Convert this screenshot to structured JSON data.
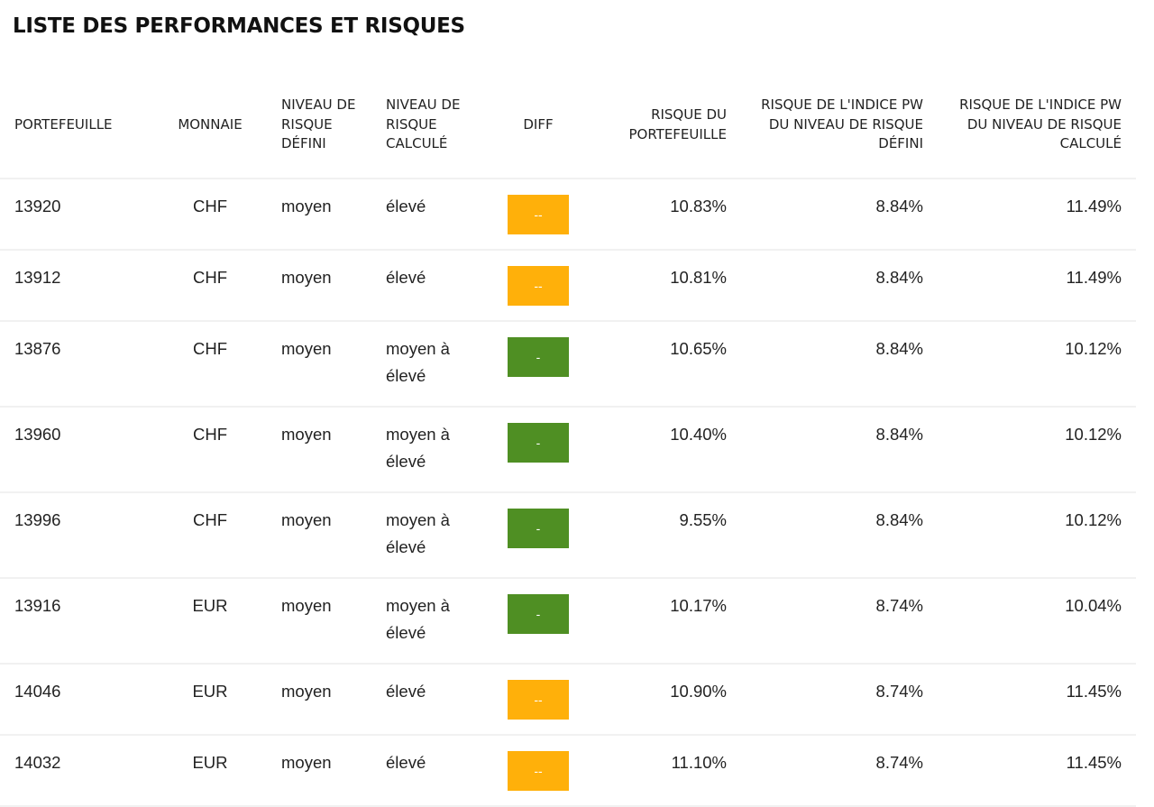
{
  "title": "LISTE DES PERFORMANCES ET RISQUES",
  "colors": {
    "orange": "#FFB00A",
    "green": "#4F8F23"
  },
  "headers": [
    "PORTEFEUILLE",
    "MONNAIE",
    "NIVEAU DE RISQUE DÉFINI",
    "NIVEAU DE RISQUE CALCULÉ",
    "DIFF",
    "RISQUE DU PORTEFEUILLE",
    "RISQUE DE L'INDICE PW DU NIVEAU DE RISQUE DÉFINI",
    "RISQUE DE L'INDICE PW DU NIVEAU DE RISQUE CALCULÉ"
  ],
  "rows": [
    {
      "portefeuille": "13920",
      "monnaie": "CHF",
      "defini": "moyen",
      "calcule": "élevé",
      "diff": "--",
      "diff_color": "orange",
      "risque": "10.83%",
      "indice_defini": "8.84%",
      "indice_calcule": "11.49%"
    },
    {
      "portefeuille": "13912",
      "monnaie": "CHF",
      "defini": "moyen",
      "calcule": "élevé",
      "diff": "--",
      "diff_color": "orange",
      "risque": "10.81%",
      "indice_defini": "8.84%",
      "indice_calcule": "11.49%"
    },
    {
      "portefeuille": "13876",
      "monnaie": "CHF",
      "defini": "moyen",
      "calcule": "moyen à élevé",
      "diff": "-",
      "diff_color": "green",
      "risque": "10.65%",
      "indice_defini": "8.84%",
      "indice_calcule": "10.12%"
    },
    {
      "portefeuille": "13960",
      "monnaie": "CHF",
      "defini": "moyen",
      "calcule": "moyen à élevé",
      "diff": "-",
      "diff_color": "green",
      "risque": "10.40%",
      "indice_defini": "8.84%",
      "indice_calcule": "10.12%"
    },
    {
      "portefeuille": "13996",
      "monnaie": "CHF",
      "defini": "moyen",
      "calcule": "moyen à élevé",
      "diff": "-",
      "diff_color": "green",
      "risque": "9.55%",
      "indice_defini": "8.84%",
      "indice_calcule": "10.12%"
    },
    {
      "portefeuille": "13916",
      "monnaie": "EUR",
      "defini": "moyen",
      "calcule": "moyen à élevé",
      "diff": "-",
      "diff_color": "green",
      "risque": "10.17%",
      "indice_defini": "8.74%",
      "indice_calcule": "10.04%"
    },
    {
      "portefeuille": "14046",
      "monnaie": "EUR",
      "defini": "moyen",
      "calcule": "élevé",
      "diff": "--",
      "diff_color": "orange",
      "risque": "10.90%",
      "indice_defini": "8.74%",
      "indice_calcule": "11.45%"
    },
    {
      "portefeuille": "14032",
      "monnaie": "EUR",
      "defini": "moyen",
      "calcule": "élevé",
      "diff": "--",
      "diff_color": "orange",
      "risque": "11.10%",
      "indice_defini": "8.74%",
      "indice_calcule": "11.45%"
    }
  ]
}
